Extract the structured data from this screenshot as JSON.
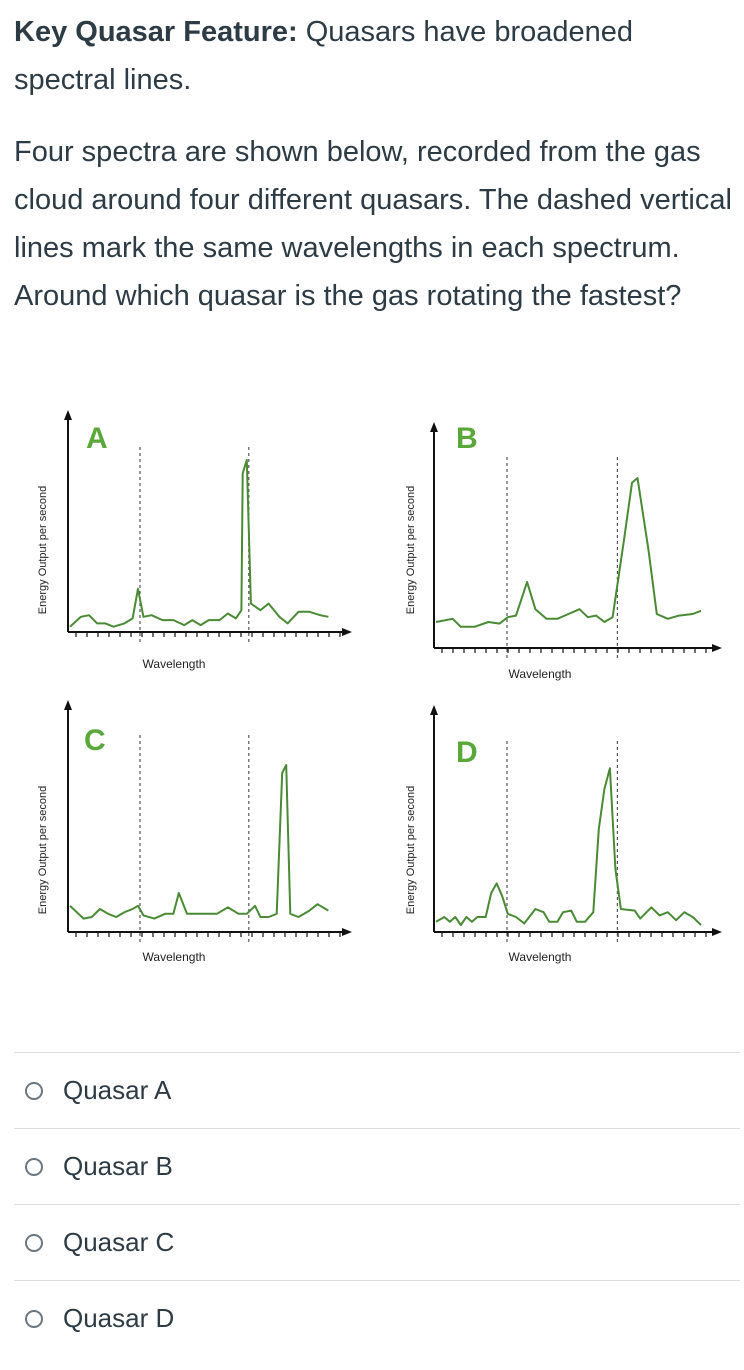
{
  "question": {
    "feature_label": "Key Quasar Feature:",
    "feature_text": " Quasars have broadened spectral lines.",
    "prompt": "Four spectra are shown below, recorded from the gas cloud around four different quasars. The dashed vertical lines mark the same wavelengths in each spectrum. Around which quasar is the gas rotating the fastest?"
  },
  "figure": {
    "xlabel": "Wavelength",
    "ylabel": "Energy Output per second",
    "line_color": "#4a8a35",
    "letter_color": "#5aa83a",
    "panels": [
      {
        "letter": "A",
        "points": [
          [
            0,
            0.02
          ],
          [
            0.04,
            0.08
          ],
          [
            0.07,
            0.09
          ],
          [
            0.1,
            0.04
          ],
          [
            0.13,
            0.04
          ],
          [
            0.16,
            0.02
          ],
          [
            0.2,
            0.04
          ],
          [
            0.23,
            0.07
          ],
          [
            0.25,
            0.25
          ],
          [
            0.27,
            0.08
          ],
          [
            0.3,
            0.09
          ],
          [
            0.34,
            0.06
          ],
          [
            0.38,
            0.06
          ],
          [
            0.42,
            0.03
          ],
          [
            0.45,
            0.06
          ],
          [
            0.48,
            0.03
          ],
          [
            0.51,
            0.06
          ],
          [
            0.55,
            0.06
          ],
          [
            0.58,
            0.1
          ],
          [
            0.61,
            0.07
          ],
          [
            0.63,
            0.12
          ],
          [
            0.635,
            0.95
          ],
          [
            0.65,
            1.03
          ],
          [
            0.665,
            0.16
          ],
          [
            0.7,
            0.12
          ],
          [
            0.73,
            0.16
          ],
          [
            0.77,
            0.08
          ],
          [
            0.8,
            0.04
          ],
          [
            0.84,
            0.11
          ],
          [
            0.88,
            0.11
          ],
          [
            0.92,
            0.09
          ],
          [
            0.95,
            0.08
          ]
        ],
        "dashed_at": [
          0.25,
          0.65
        ]
      },
      {
        "letter": "B",
        "points": [
          [
            0,
            0.05
          ],
          [
            0.06,
            0.07
          ],
          [
            0.09,
            0.02
          ],
          [
            0.14,
            0.02
          ],
          [
            0.19,
            0.05
          ],
          [
            0.23,
            0.04
          ],
          [
            0.26,
            0.08
          ],
          [
            0.29,
            0.09
          ],
          [
            0.33,
            0.3
          ],
          [
            0.36,
            0.13
          ],
          [
            0.4,
            0.07
          ],
          [
            0.44,
            0.07
          ],
          [
            0.48,
            0.1
          ],
          [
            0.52,
            0.13
          ],
          [
            0.55,
            0.08
          ],
          [
            0.58,
            0.09
          ],
          [
            0.61,
            0.05
          ],
          [
            0.64,
            0.08
          ],
          [
            0.68,
            0.55
          ],
          [
            0.71,
            0.92
          ],
          [
            0.73,
            0.95
          ],
          [
            0.77,
            0.5
          ],
          [
            0.8,
            0.1
          ],
          [
            0.84,
            0.07
          ],
          [
            0.88,
            0.09
          ],
          [
            0.93,
            0.1
          ],
          [
            0.96,
            0.12
          ]
        ],
        "dashed_at": [
          0.25,
          0.65
        ]
      },
      {
        "letter": "C",
        "points": [
          [
            0,
            0.12
          ],
          [
            0.05,
            0.04
          ],
          [
            0.08,
            0.05
          ],
          [
            0.11,
            0.1
          ],
          [
            0.14,
            0.07
          ],
          [
            0.17,
            0.05
          ],
          [
            0.2,
            0.08
          ],
          [
            0.23,
            0.1
          ],
          [
            0.25,
            0.12
          ],
          [
            0.27,
            0.06
          ],
          [
            0.31,
            0.04
          ],
          [
            0.35,
            0.07
          ],
          [
            0.38,
            0.07
          ],
          [
            0.4,
            0.2
          ],
          [
            0.43,
            0.07
          ],
          [
            0.46,
            0.07
          ],
          [
            0.5,
            0.07
          ],
          [
            0.54,
            0.07
          ],
          [
            0.58,
            0.11
          ],
          [
            0.62,
            0.07
          ],
          [
            0.65,
            0.07
          ],
          [
            0.68,
            0.12
          ],
          [
            0.7,
            0.05
          ],
          [
            0.73,
            0.05
          ],
          [
            0.76,
            0.07
          ],
          [
            0.78,
            0.95
          ],
          [
            0.795,
            1.0
          ],
          [
            0.81,
            0.07
          ],
          [
            0.84,
            0.05
          ],
          [
            0.88,
            0.09
          ],
          [
            0.91,
            0.13
          ],
          [
            0.95,
            0.09
          ]
        ],
        "dashed_at": [
          0.25,
          0.65
        ]
      },
      {
        "letter": "D",
        "points": [
          [
            0,
            0.02
          ],
          [
            0.03,
            0.05
          ],
          [
            0.05,
            0.02
          ],
          [
            0.07,
            0.05
          ],
          [
            0.09,
            0.0
          ],
          [
            0.11,
            0.05
          ],
          [
            0.13,
            0.02
          ],
          [
            0.15,
            0.05
          ],
          [
            0.18,
            0.05
          ],
          [
            0.2,
            0.2
          ],
          [
            0.22,
            0.26
          ],
          [
            0.24,
            0.18
          ],
          [
            0.26,
            0.07
          ],
          [
            0.29,
            0.05
          ],
          [
            0.32,
            0.01
          ],
          [
            0.36,
            0.1
          ],
          [
            0.39,
            0.08
          ],
          [
            0.41,
            0.02
          ],
          [
            0.44,
            0.02
          ],
          [
            0.46,
            0.08
          ],
          [
            0.49,
            0.09
          ],
          [
            0.51,
            0.02
          ],
          [
            0.54,
            0.02
          ],
          [
            0.57,
            0.08
          ],
          [
            0.59,
            0.6
          ],
          [
            0.61,
            0.85
          ],
          [
            0.63,
            0.98
          ],
          [
            0.65,
            0.35
          ],
          [
            0.67,
            0.1
          ],
          [
            0.72,
            0.09
          ],
          [
            0.74,
            0.04
          ],
          [
            0.78,
            0.11
          ],
          [
            0.81,
            0.06
          ],
          [
            0.84,
            0.08
          ],
          [
            0.87,
            0.03
          ],
          [
            0.9,
            0.08
          ],
          [
            0.93,
            0.05
          ],
          [
            0.96,
            0.0
          ]
        ],
        "dashed_at": [
          0.25,
          0.65
        ]
      }
    ]
  },
  "options": [
    {
      "label": "Quasar A"
    },
    {
      "label": "Quasar B"
    },
    {
      "label": "Quasar C"
    },
    {
      "label": "Quasar D"
    }
  ]
}
